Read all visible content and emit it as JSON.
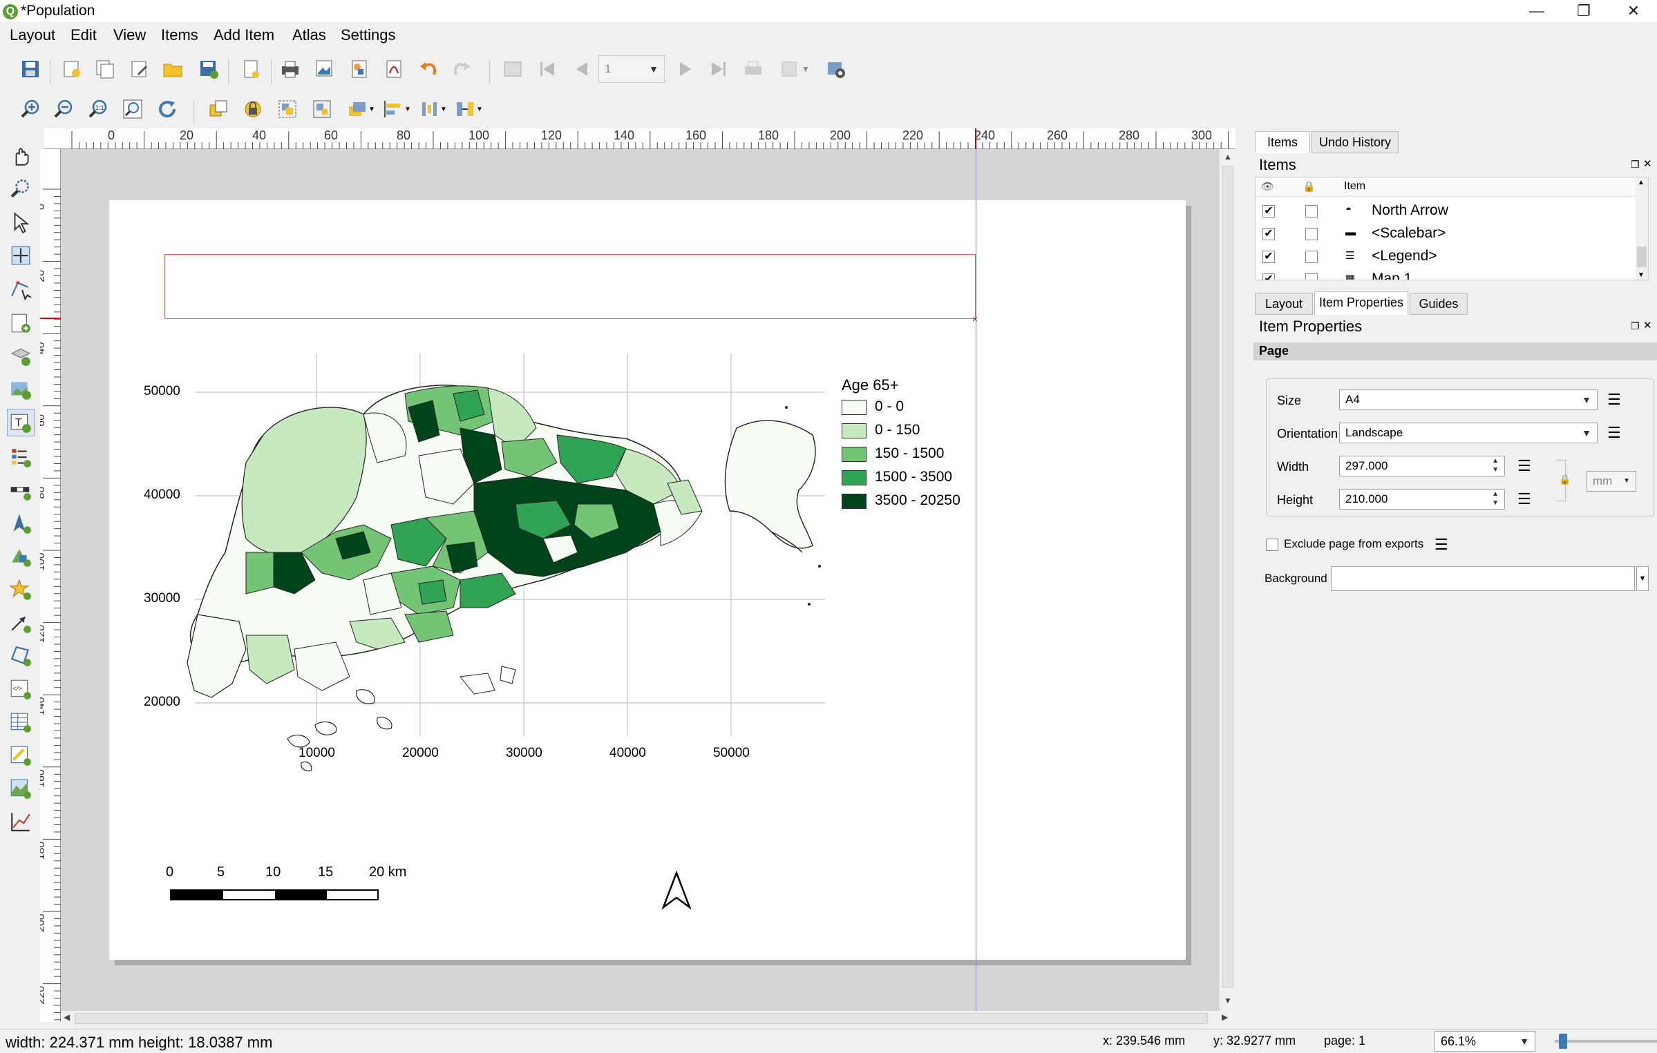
{
  "window": {
    "title": "*Population",
    "app_icon": "Q"
  },
  "menubar": [
    "Layout",
    "Edit",
    "View",
    "Items",
    "Add Item",
    "Atlas",
    "Settings"
  ],
  "toolbar1": {
    "page_field": "1"
  },
  "ruler": {
    "h_labels": [
      "0",
      "20",
      "40",
      "60",
      "80",
      "100",
      "120",
      "140",
      "160",
      "180",
      "200",
      "220",
      "240",
      "260",
      "280",
      "300"
    ],
    "v_labels": [
      "0",
      "20",
      "40",
      "60",
      "80",
      "100",
      "120",
      "140",
      "160",
      "180",
      "200",
      "220"
    ]
  },
  "map": {
    "y_labels": [
      "50000",
      "40000",
      "30000",
      "20000"
    ],
    "x_labels": [
      "10000",
      "20000",
      "30000",
      "40000",
      "50000"
    ],
    "colors": {
      "c0": "#f7fcf5",
      "c1": "#c7e9c0",
      "c2": "#74c476",
      "c3": "#31a354",
      "c4": "#00441b"
    }
  },
  "legend": {
    "title": "Age 65+",
    "items": [
      {
        "label": "0 - 0",
        "color": "#f7fcf5"
      },
      {
        "label": "0 - 150",
        "color": "#c7e9c0"
      },
      {
        "label": "150 - 1500",
        "color": "#74c476"
      },
      {
        "label": "1500 - 3500",
        "color": "#31a354"
      },
      {
        "label": "3500 - 20250",
        "color": "#00441b"
      }
    ]
  },
  "scalebar": {
    "labels": [
      "0",
      "5",
      "10",
      "15",
      "20 km"
    ]
  },
  "items_panel": {
    "tabs": [
      "Items",
      "Undo History"
    ],
    "title": "Items",
    "column": "Item",
    "rows": [
      {
        "name": "North Arrow",
        "visible": true,
        "locked": false
      },
      {
        "name": "<Scalebar>",
        "visible": true,
        "locked": false
      },
      {
        "name": "<Legend>",
        "visible": true,
        "locked": false
      },
      {
        "name": "Map 1",
        "visible": true,
        "locked": false
      }
    ]
  },
  "props_panel": {
    "tabs": [
      "Layout",
      "Item Properties",
      "Guides"
    ],
    "title": "Item Properties",
    "section": "Page",
    "size_label": "Size",
    "size_value": "A4",
    "orientation_label": "Orientation",
    "orientation_value": "Landscape",
    "width_label": "Width",
    "width_value": "297.000",
    "height_label": "Height",
    "height_value": "210.000",
    "unit": "mm",
    "exclude_label": "Exclude page from exports",
    "background_label": "Background"
  },
  "status": {
    "left": "width: 224.371 mm height: 18.0387 mm",
    "x": "x: 239.546 mm",
    "y": "y: 32.9277 mm",
    "page": "page: 1",
    "zoom": "66.1%"
  }
}
